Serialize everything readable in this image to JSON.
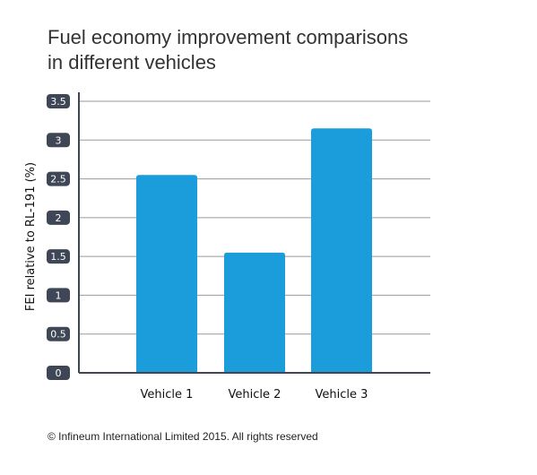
{
  "chart_data": {
    "type": "bar",
    "title_lines": [
      "Fuel economy improvement comparisons",
      "in different vehicles"
    ],
    "xlabel": "",
    "ylabel": "FEI relative to RL-191 (%)",
    "categories": [
      "Vehicle 1",
      "Vehicle 2",
      "Vehicle 3"
    ],
    "values": [
      2.55,
      1.55,
      3.15
    ],
    "ylim": [
      0,
      3.5
    ],
    "yticks": [
      0,
      0.5,
      1,
      1.5,
      2,
      2.5,
      3,
      3.5
    ],
    "ytick_labels": [
      "0",
      "0.5",
      "1",
      "1.5",
      "2",
      "2.5",
      "3",
      "3.5"
    ],
    "grid": true,
    "legend": false,
    "colors": {
      "bar": "#1b9ddb",
      "grid": "#9a9a9a",
      "tick_badge": "#3f4756",
      "tick_text": "#ffffff",
      "axis": "#3f4756"
    }
  },
  "footer": {
    "copyright": "© Infineum International Limited 2015. All rights reserved"
  }
}
